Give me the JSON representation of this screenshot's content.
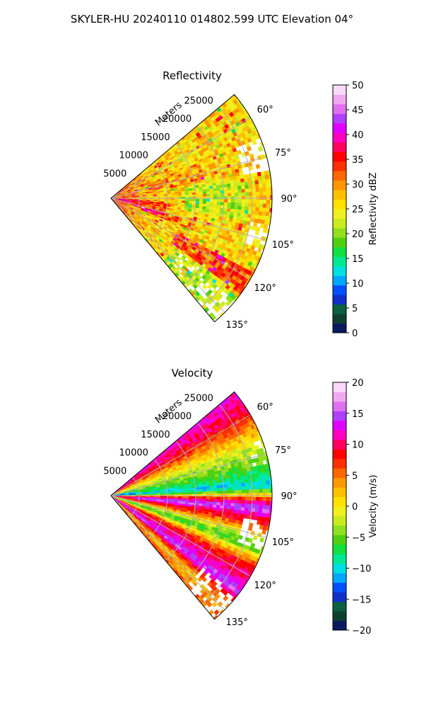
{
  "figure": {
    "suptitle": "SKYLER-HU  20240110  014802.599 UTC Elevation 04°"
  },
  "chart_data": [
    {
      "type": "heatmap",
      "projection": "polar-sector",
      "title": "Reflectivity",
      "range_label": "Meters",
      "range_ticks": [
        5000,
        10000,
        15000,
        20000,
        25000
      ],
      "range_max": 28500,
      "azimuth_range_deg": [
        50,
        140
      ],
      "azimuth_ticks": [
        60,
        75,
        90,
        105,
        120,
        135
      ],
      "azimuth_tick_labels": [
        "60°",
        "75°",
        "90°",
        "105°",
        "120°",
        "135°"
      ],
      "grid": true,
      "colorbar": {
        "label": "Reflectivity dBZ",
        "min": 0,
        "max": 50,
        "ticks": [
          0,
          5,
          10,
          15,
          20,
          25,
          30,
          35,
          40,
          45,
          50
        ],
        "colors": [
          "#0b1a5e",
          "#0d4030",
          "#0b6040",
          "#1030c8",
          "#0050ff",
          "#00a8ff",
          "#00e0e0",
          "#00e890",
          "#10e040",
          "#50d010",
          "#90e020",
          "#c8ec20",
          "#f0f020",
          "#ffe000",
          "#ffc000",
          "#ff9800",
          "#ff6800",
          "#ff3000",
          "#ff0000",
          "#ff0060",
          "#ff00c0",
          "#e000ff",
          "#b040ff",
          "#e070f0",
          "#f0a8f0",
          "#fad8fa"
        ]
      },
      "field_summary": "Mostly 25-32 dBZ echoes; 35-40 dBZ bands near radar and along ~100-125°; weaker 20-25 dBZ patches; no-echo gaps near far edge at 70-80°, 100-110° and 130-135°."
    },
    {
      "type": "heatmap",
      "projection": "polar-sector",
      "title": "Velocity",
      "range_label": "Meters",
      "range_ticks": [
        5000,
        10000,
        15000,
        20000,
        25000
      ],
      "range_max": 28500,
      "azimuth_range_deg": [
        50,
        140
      ],
      "azimuth_ticks": [
        60,
        75,
        90,
        105,
        120,
        135
      ],
      "azimuth_tick_labels": [
        "60°",
        "75°",
        "90°",
        "105°",
        "120°",
        "135°"
      ],
      "grid": true,
      "colorbar": {
        "label": "Velocity (m/s)",
        "min": -20,
        "max": 20,
        "ticks": [
          -20,
          -15,
          -10,
          -5,
          0,
          5,
          10,
          15,
          20
        ],
        "colors": [
          "#0b1a5e",
          "#0d4030",
          "#0b6040",
          "#1030c8",
          "#0050ff",
          "#00a8ff",
          "#00e0e0",
          "#00e890",
          "#10e040",
          "#50d010",
          "#90e020",
          "#c8ec20",
          "#f0f020",
          "#ffe000",
          "#ffc000",
          "#ff9800",
          "#ff6800",
          "#ff3000",
          "#ff0000",
          "#ff0060",
          "#ff00c0",
          "#e000ff",
          "#b040ff",
          "#e070f0",
          "#f0a8f0",
          "#fad8fa"
        ]
      },
      "field_summary": "Banded radial velocities: about +10 m/s near 60°, +0 to -7 m/s at 65-85°, -10 m/s cyan at 85-88°, +15 m/s magenta band 92-97°, +8 m/s red 98-103°, 0 to -8 m/s 105-112°, +10 m/s red 115-125°, +15 m/s magenta 126-130°, yellow/orange at 135-140°."
    }
  ]
}
